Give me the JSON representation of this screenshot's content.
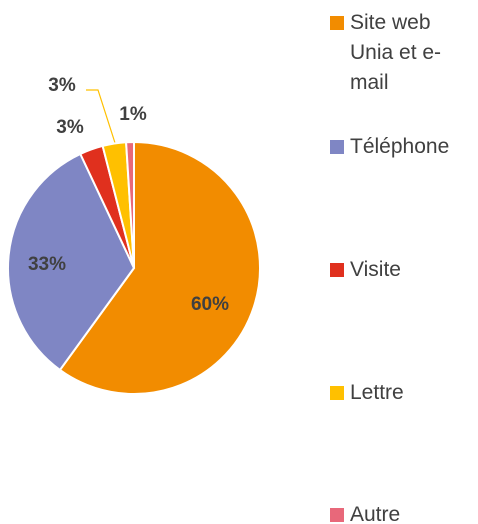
{
  "chart_data": {
    "type": "pie",
    "categories": [
      "Site web Unia et e-mail",
      "Téléphone",
      "Visite",
      "Lettre",
      "Autre"
    ],
    "values": [
      60,
      33,
      3,
      3,
      1
    ],
    "value_labels": [
      "60%",
      "33%",
      "3%",
      "3%",
      "1%"
    ],
    "colors": [
      "#F28C00",
      "#7F86C4",
      "#E0301E",
      "#FFC000",
      "#E8687A"
    ],
    "legend": "right"
  }
}
